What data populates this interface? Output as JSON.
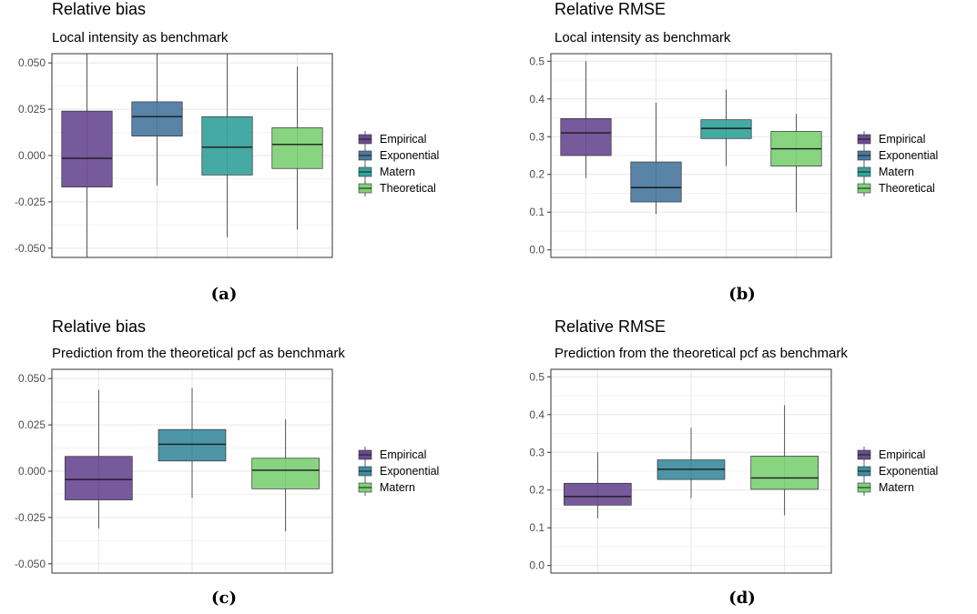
{
  "charts": [
    {
      "caption": "(a)",
      "chart_data": {
        "type": "box",
        "title": "Relative bias",
        "subtitle": "Local intensity as benchmark",
        "ylim": [
          -0.055,
          0.055
        ],
        "yticks": [
          -0.05,
          -0.025,
          0,
          0.025,
          0.05
        ],
        "ytick_labels": [
          "-0.050",
          "-0.025",
          "0.000",
          "0.025",
          "0.050"
        ],
        "grid": true,
        "legend_position": "right",
        "series": [
          {
            "name": "Empirical",
            "color": "#6a4c93",
            "min": -0.055,
            "q1": -0.017,
            "median": -0.0015,
            "q3": 0.024,
            "max": 0.055
          },
          {
            "name": "Exponential",
            "color": "#4b78a0",
            "min": -0.016,
            "q1": 0.0105,
            "median": 0.021,
            "q3": 0.029,
            "max": 0.055
          },
          {
            "name": "Matern",
            "color": "#35a39b",
            "min": -0.044,
            "q1": -0.0105,
            "median": 0.0045,
            "q3": 0.021,
            "max": 0.055
          },
          {
            "name": "Theoretical",
            "color": "#7ed076",
            "min": -0.04,
            "q1": -0.007,
            "median": 0.006,
            "q3": 0.015,
            "max": 0.048
          }
        ]
      }
    },
    {
      "caption": "(b)",
      "chart_data": {
        "type": "box",
        "title": "Relative RMSE",
        "subtitle": "Local intensity as benchmark",
        "ylim": [
          -0.02,
          0.52
        ],
        "yticks": [
          0,
          0.1,
          0.2,
          0.3,
          0.4,
          0.5
        ],
        "ytick_labels": [
          "0.0",
          "0.1",
          "0.2",
          "0.3",
          "0.4",
          "0.5"
        ],
        "grid": true,
        "legend_position": "right",
        "series": [
          {
            "name": "Empirical",
            "color": "#6a4c93",
            "min": 0.19,
            "q1": 0.25,
            "median": 0.31,
            "q3": 0.348,
            "max": 0.5
          },
          {
            "name": "Exponential",
            "color": "#4b78a0",
            "min": 0.095,
            "q1": 0.127,
            "median": 0.165,
            "q3": 0.233,
            "max": 0.39
          },
          {
            "name": "Matern",
            "color": "#35a39b",
            "min": 0.222,
            "q1": 0.295,
            "median": 0.322,
            "q3": 0.345,
            "max": 0.425
          },
          {
            "name": "Theoretical",
            "color": "#7ed076",
            "min": 0.1,
            "q1": 0.222,
            "median": 0.268,
            "q3": 0.314,
            "max": 0.36
          }
        ]
      }
    },
    {
      "caption": "(c)",
      "chart_data": {
        "type": "box",
        "title": "Relative bias",
        "subtitle": "Prediction from the theoretical pcf as benchmark",
        "ylim": [
          -0.055,
          0.055
        ],
        "yticks": [
          -0.05,
          -0.025,
          0,
          0.025,
          0.05
        ],
        "ytick_labels": [
          "-0.050",
          "-0.025",
          "0.000",
          "0.025",
          "0.050"
        ],
        "grid": true,
        "legend_position": "right",
        "series": [
          {
            "name": "Empirical",
            "color": "#6a4c93",
            "min": -0.031,
            "q1": -0.0155,
            "median": -0.0045,
            "q3": 0.008,
            "max": 0.044
          },
          {
            "name": "Exponential",
            "color": "#3d8da0",
            "min": -0.0145,
            "q1": 0.0055,
            "median": 0.0145,
            "q3": 0.0225,
            "max": 0.045
          },
          {
            "name": "Matern",
            "color": "#7ed076",
            "min": -0.0325,
            "q1": -0.0095,
            "median": 0.0005,
            "q3": 0.007,
            "max": 0.028
          }
        ]
      }
    },
    {
      "caption": "(d)",
      "chart_data": {
        "type": "box",
        "title": "Relative RMSE",
        "subtitle": "Prediction from the theoretical pcf as benchmark",
        "ylim": [
          -0.02,
          0.52
        ],
        "yticks": [
          0,
          0.1,
          0.2,
          0.3,
          0.4,
          0.5
        ],
        "ytick_labels": [
          "0.0",
          "0.1",
          "0.2",
          "0.3",
          "0.4",
          "0.5"
        ],
        "grid": true,
        "legend_position": "right",
        "series": [
          {
            "name": "Empirical",
            "color": "#6a4c93",
            "min": 0.125,
            "q1": 0.16,
            "median": 0.183,
            "q3": 0.218,
            "max": 0.3
          },
          {
            "name": "Exponential",
            "color": "#3d8da0",
            "min": 0.178,
            "q1": 0.228,
            "median": 0.255,
            "q3": 0.28,
            "max": 0.365
          },
          {
            "name": "Matern",
            "color": "#7ed076",
            "min": 0.133,
            "q1": 0.202,
            "median": 0.232,
            "q3": 0.29,
            "max": 0.425
          }
        ]
      }
    }
  ]
}
